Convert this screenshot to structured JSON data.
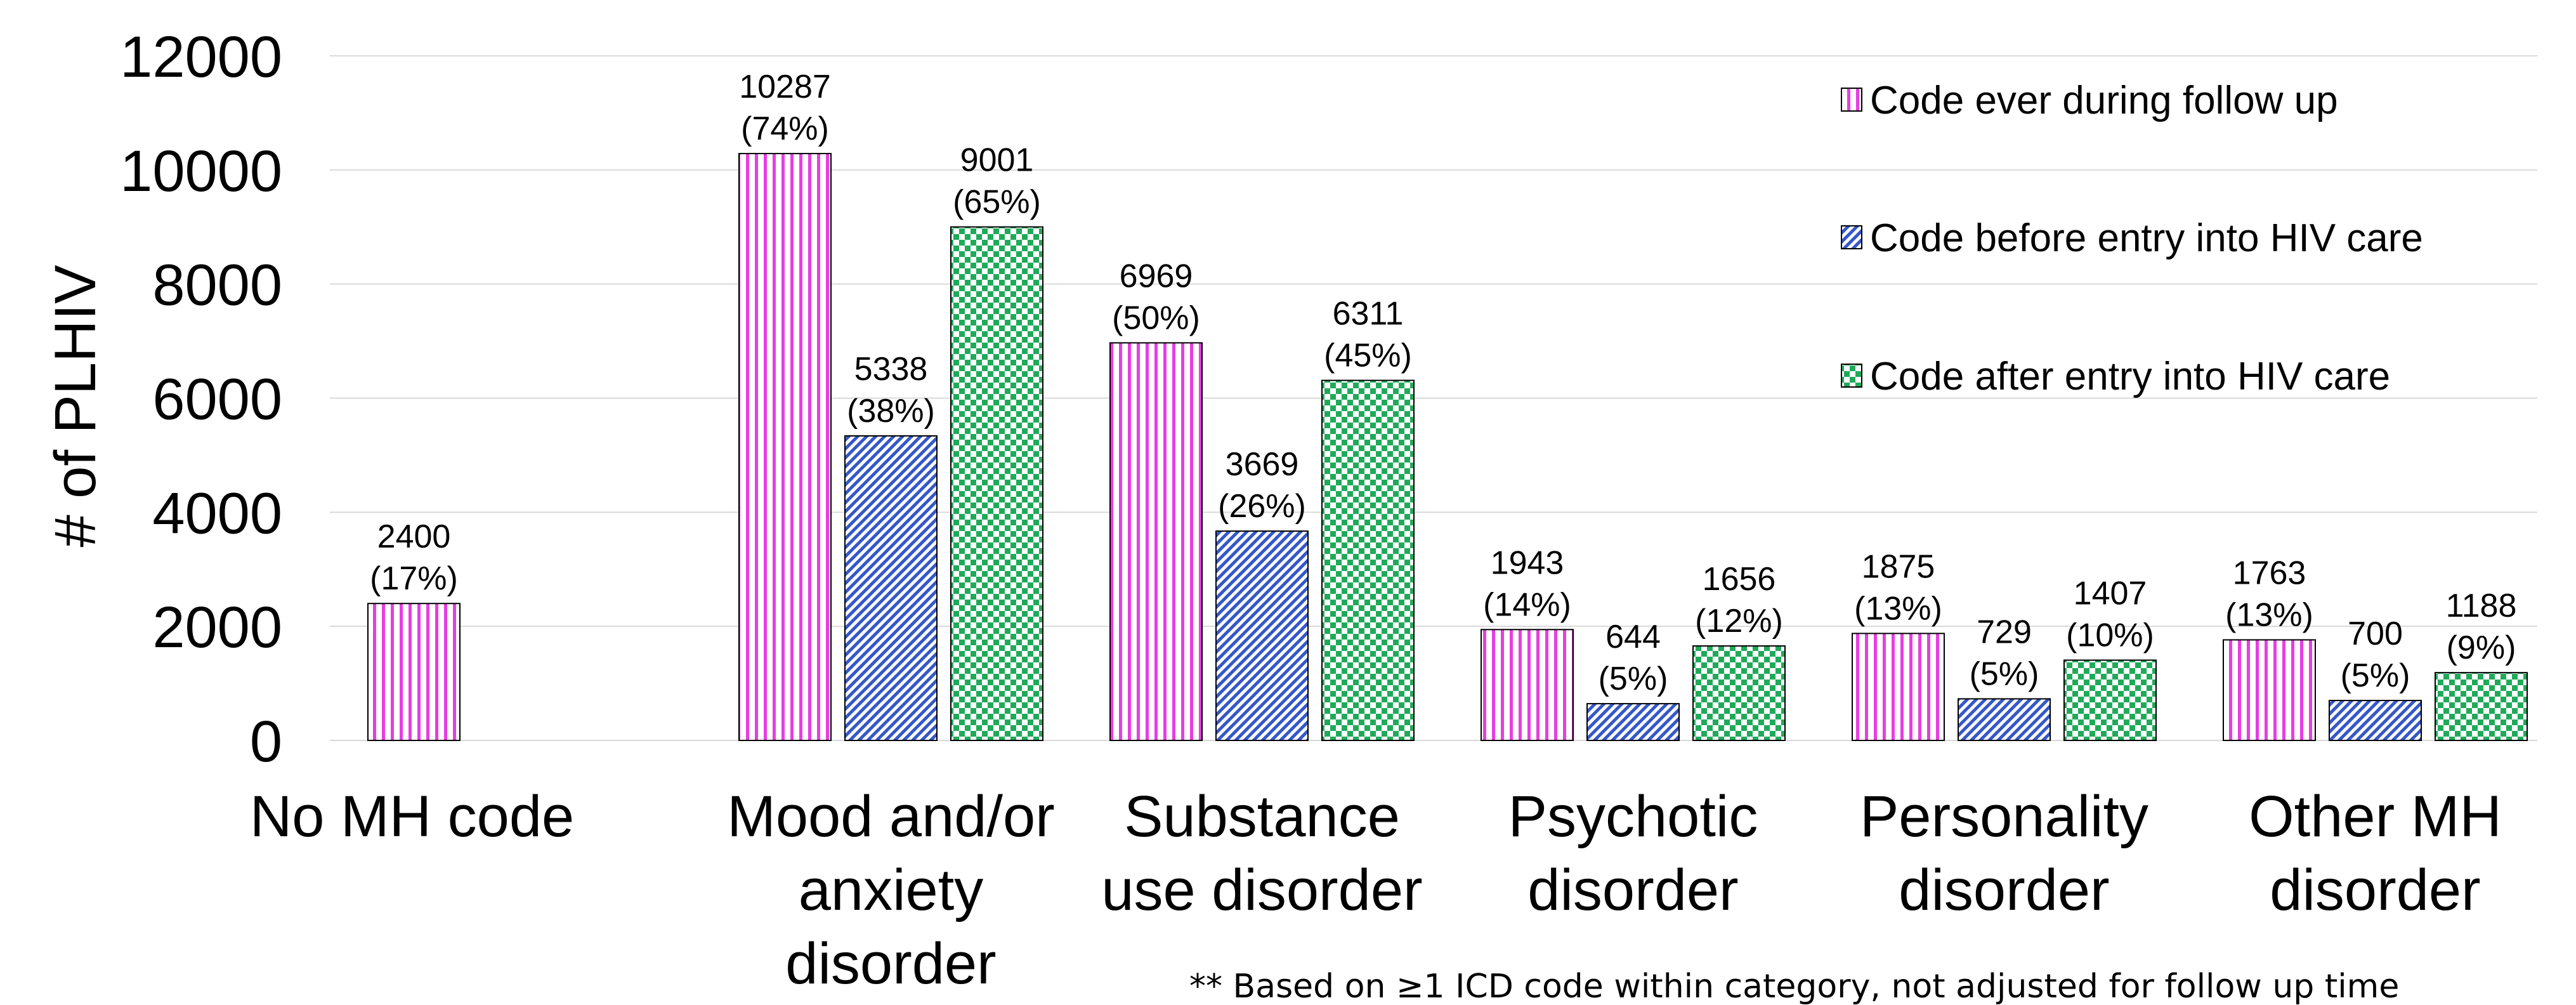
{
  "chart_data": {
    "type": "bar",
    "ylabel": "# of PLHIV",
    "ylim": [
      0,
      12000
    ],
    "yticks": [
      0,
      2000,
      4000,
      6000,
      8000,
      10000,
      12000
    ],
    "grid": true,
    "legend_position": "top-right",
    "categories": [
      [
        "No MH code"
      ],
      [
        "Mood and/or",
        "anxiety",
        "disorder"
      ],
      [
        "Substance",
        "use disorder"
      ],
      [
        "Psychotic",
        "disorder"
      ],
      [
        "Personality",
        "disorder"
      ],
      [
        "Other MH",
        "disorder"
      ]
    ],
    "series": [
      {
        "name": "Code ever during follow up",
        "pattern": "vertical-stripes",
        "color": "#e83de3",
        "values": [
          2400,
          10287,
          6969,
          1943,
          1875,
          1763
        ],
        "labels": [
          "(17%)",
          "(74%)",
          "(50%)",
          "(14%)",
          "(13%)",
          "(13%)"
        ]
      },
      {
        "name": "Code before entry into HIV care",
        "pattern": "diagonal-stripes",
        "color": "#3457c9",
        "values": [
          null,
          5338,
          3669,
          644,
          729,
          700
        ],
        "labels": [
          null,
          "(38%)",
          "(26%)",
          "(5%)",
          "(5%)",
          "(5%)"
        ]
      },
      {
        "name": "Code after entry into HIV care",
        "pattern": "checkerboard",
        "color": "#1faa5a",
        "values": [
          null,
          9001,
          6311,
          1656,
          1407,
          1188
        ],
        "labels": [
          null,
          "(65%)",
          "(45%)",
          "(12%)",
          "(10%)",
          "(9%)"
        ]
      }
    ],
    "footnote": "** Based on ≥1 ICD code within category, not adjusted for follow up time"
  }
}
